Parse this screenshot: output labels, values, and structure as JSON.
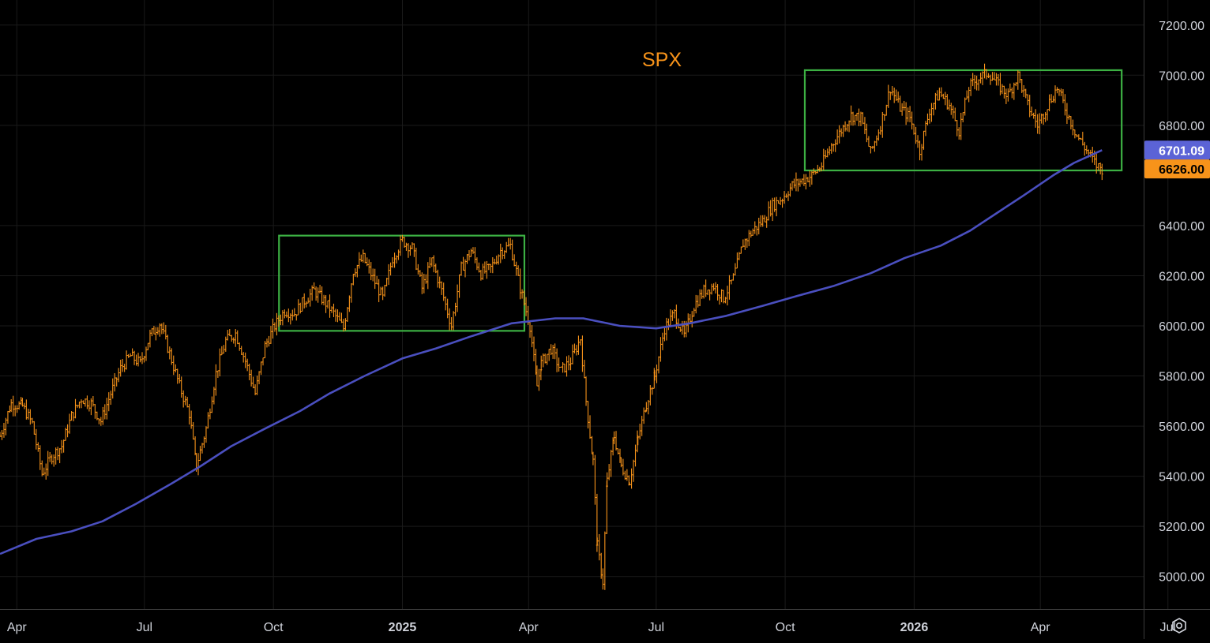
{
  "chart_data": {
    "type": "line",
    "title": "SPX",
    "title_color": "#f7931a",
    "background": "#000000",
    "grid": true,
    "ylim": [
      4870,
      7300
    ],
    "xlim": [
      "2024-03-20",
      "2026-07-31"
    ],
    "y_ticks": [
      "7200.00",
      "7000.00",
      "6800.00",
      "6400.00",
      "6200.00",
      "6000.00",
      "5800.00",
      "5600.00",
      "5400.00",
      "5200.00",
      "5000.00"
    ],
    "x_ticks": [
      {
        "date": "2024-04-01",
        "label": "Apr"
      },
      {
        "date": "2024-07-01",
        "label": "Jul"
      },
      {
        "date": "2024-10-01",
        "label": "Oct"
      },
      {
        "date": "2025-01-01",
        "label": "2025"
      },
      {
        "date": "2025-04-01",
        "label": "Apr"
      },
      {
        "date": "2025-07-01",
        "label": "Jul"
      },
      {
        "date": "2025-10-01",
        "label": "Oct"
      },
      {
        "date": "2026-01-01",
        "label": "2026"
      },
      {
        "date": "2026-04-01",
        "label": "Apr"
      },
      {
        "date": "2026-07-01",
        "label": "Jul"
      }
    ],
    "series": [
      {
        "style": "ohlc-bars",
        "color": "#f7931a",
        "points": [
          [
            "2024-03-20",
            5560
          ],
          [
            "2024-03-28",
            5690
          ],
          [
            "2024-04-05",
            5680
          ],
          [
            "2024-04-12",
            5610
          ],
          [
            "2024-04-19",
            5410
          ],
          [
            "2024-04-26",
            5480
          ],
          [
            "2024-05-03",
            5520
          ],
          [
            "2024-05-10",
            5640
          ],
          [
            "2024-05-17",
            5710
          ],
          [
            "2024-05-24",
            5690
          ],
          [
            "2024-05-31",
            5620
          ],
          [
            "2024-06-07",
            5730
          ],
          [
            "2024-06-14",
            5830
          ],
          [
            "2024-06-21",
            5880
          ],
          [
            "2024-06-28",
            5850
          ],
          [
            "2024-07-05",
            5960
          ],
          [
            "2024-07-12",
            6010
          ],
          [
            "2024-07-19",
            5890
          ],
          [
            "2024-07-26",
            5760
          ],
          [
            "2024-08-02",
            5650
          ],
          [
            "2024-08-07",
            5440
          ],
          [
            "2024-08-14",
            5590
          ],
          [
            "2024-08-21",
            5810
          ],
          [
            "2024-08-28",
            5940
          ],
          [
            "2024-09-04",
            5970
          ],
          [
            "2024-09-11",
            5860
          ],
          [
            "2024-09-18",
            5730
          ],
          [
            "2024-09-25",
            5920
          ],
          [
            "2024-10-02",
            6000
          ],
          [
            "2024-10-09",
            6060
          ],
          [
            "2024-10-16",
            6050
          ],
          [
            "2024-10-23",
            6100
          ],
          [
            "2024-10-30",
            6140
          ],
          [
            "2024-11-06",
            6100
          ],
          [
            "2024-11-13",
            6050
          ],
          [
            "2024-11-20",
            5990
          ],
          [
            "2024-11-27",
            6220
          ],
          [
            "2024-12-04",
            6270
          ],
          [
            "2024-12-11",
            6190
          ],
          [
            "2024-12-18",
            6110
          ],
          [
            "2024-12-25",
            6270
          ],
          [
            "2025-01-01",
            6340
          ],
          [
            "2025-01-08",
            6310
          ],
          [
            "2025-01-15",
            6150
          ],
          [
            "2025-01-22",
            6260
          ],
          [
            "2025-01-29",
            6140
          ],
          [
            "2025-02-05",
            6000
          ],
          [
            "2025-02-12",
            6230
          ],
          [
            "2025-02-19",
            6300
          ],
          [
            "2025-02-26",
            6210
          ],
          [
            "2025-03-05",
            6230
          ],
          [
            "2025-03-12",
            6300
          ],
          [
            "2025-03-19",
            6320
          ],
          [
            "2025-03-26",
            6150
          ],
          [
            "2025-04-02",
            6000
          ],
          [
            "2025-04-07",
            5760
          ],
          [
            "2025-04-10",
            5850
          ],
          [
            "2025-04-17",
            5910
          ],
          [
            "2025-04-24",
            5820
          ],
          [
            "2025-05-01",
            5860
          ],
          [
            "2025-05-08",
            5950
          ],
          [
            "2025-05-12",
            5700
          ],
          [
            "2025-05-17",
            5460
          ],
          [
            "2025-05-20",
            5120
          ],
          [
            "2025-05-24",
            4980
          ],
          [
            "2025-05-27",
            5380
          ],
          [
            "2025-06-01",
            5560
          ],
          [
            "2025-06-06",
            5440
          ],
          [
            "2025-06-12",
            5380
          ],
          [
            "2025-06-18",
            5550
          ],
          [
            "2025-06-24",
            5690
          ],
          [
            "2025-06-30",
            5800
          ],
          [
            "2025-07-07",
            5990
          ],
          [
            "2025-07-14",
            6050
          ],
          [
            "2025-07-21",
            5960
          ],
          [
            "2025-07-28",
            6080
          ],
          [
            "2025-08-04",
            6140
          ],
          [
            "2025-08-11",
            6160
          ],
          [
            "2025-08-18",
            6110
          ],
          [
            "2025-08-25",
            6190
          ],
          [
            "2025-09-01",
            6330
          ],
          [
            "2025-09-08",
            6380
          ],
          [
            "2025-09-15",
            6420
          ],
          [
            "2025-09-22",
            6480
          ],
          [
            "2025-09-29",
            6510
          ],
          [
            "2025-10-06",
            6560
          ],
          [
            "2025-10-13",
            6580
          ],
          [
            "2025-10-20",
            6600
          ],
          [
            "2025-10-27",
            6640
          ],
          [
            "2025-11-03",
            6720
          ],
          [
            "2025-11-10",
            6780
          ],
          [
            "2025-11-17",
            6840
          ],
          [
            "2025-11-24",
            6830
          ],
          [
            "2025-12-01",
            6690
          ],
          [
            "2025-12-08",
            6800
          ],
          [
            "2025-12-15",
            6950
          ],
          [
            "2025-12-22",
            6870
          ],
          [
            "2025-12-29",
            6830
          ],
          [
            "2026-01-05",
            6700
          ],
          [
            "2026-01-12",
            6860
          ],
          [
            "2026-01-19",
            6930
          ],
          [
            "2026-01-26",
            6880
          ],
          [
            "2026-02-02",
            6780
          ],
          [
            "2026-02-09",
            6950
          ],
          [
            "2026-02-16",
            6990
          ],
          [
            "2026-02-23",
            7010
          ],
          [
            "2026-03-02",
            6960
          ],
          [
            "2026-03-09",
            6920
          ],
          [
            "2026-03-16",
            7000
          ],
          [
            "2026-03-23",
            6880
          ],
          [
            "2026-03-30",
            6800
          ],
          [
            "2026-04-06",
            6880
          ],
          [
            "2026-04-13",
            6950
          ],
          [
            "2026-04-20",
            6850
          ],
          [
            "2026-04-27",
            6760
          ],
          [
            "2026-05-04",
            6700
          ],
          [
            "2026-05-11",
            6640
          ],
          [
            "2026-05-15",
            6626
          ]
        ]
      },
      {
        "style": "line",
        "color": "#4a4fbf",
        "points": [
          [
            "2024-03-20",
            5090
          ],
          [
            "2024-04-15",
            5150
          ],
          [
            "2024-05-10",
            5180
          ],
          [
            "2024-06-01",
            5220
          ],
          [
            "2024-06-25",
            5290
          ],
          [
            "2024-07-20",
            5370
          ],
          [
            "2024-08-10",
            5440
          ],
          [
            "2024-09-01",
            5520
          ],
          [
            "2024-09-25",
            5590
          ],
          [
            "2024-10-20",
            5660
          ],
          [
            "2024-11-10",
            5730
          ],
          [
            "2024-12-05",
            5800
          ],
          [
            "2025-01-01",
            5870
          ],
          [
            "2025-01-25",
            5910
          ],
          [
            "2025-02-20",
            5960
          ],
          [
            "2025-03-20",
            6010
          ],
          [
            "2025-04-20",
            6030
          ],
          [
            "2025-05-10",
            6030
          ],
          [
            "2025-06-05",
            6000
          ],
          [
            "2025-07-01",
            5990
          ],
          [
            "2025-07-25",
            6010
          ],
          [
            "2025-08-20",
            6040
          ],
          [
            "2025-09-15",
            6080
          ],
          [
            "2025-10-10",
            6120
          ],
          [
            "2025-11-05",
            6160
          ],
          [
            "2025-12-01",
            6210
          ],
          [
            "2025-12-25",
            6270
          ],
          [
            "2026-01-20",
            6320
          ],
          [
            "2026-02-10",
            6380
          ],
          [
            "2026-03-01",
            6450
          ],
          [
            "2026-03-20",
            6520
          ],
          [
            "2026-04-10",
            6600
          ],
          [
            "2026-04-25",
            6650
          ],
          [
            "2026-05-15",
            6701.09
          ]
        ]
      }
    ],
    "annotations": [
      {
        "type": "rect",
        "color": "#3cb043",
        "x0": "2024-10-05",
        "x1": "2025-03-29",
        "y0": 5980,
        "y1": 6360
      },
      {
        "type": "rect",
        "color": "#3cb043",
        "x0": "2025-10-15",
        "x1": "2026-05-29",
        "y0": 6620,
        "y1": 7020
      }
    ],
    "price_labels": [
      {
        "text": "6701.09",
        "value": 6701.09,
        "bg": "#5b63d6",
        "fg": "#ffffff"
      },
      {
        "text": "6626.00",
        "value": 6626.0,
        "bg": "#f7931a",
        "fg": "#000000"
      }
    ]
  },
  "settings_icon": "settings-gear-icon"
}
